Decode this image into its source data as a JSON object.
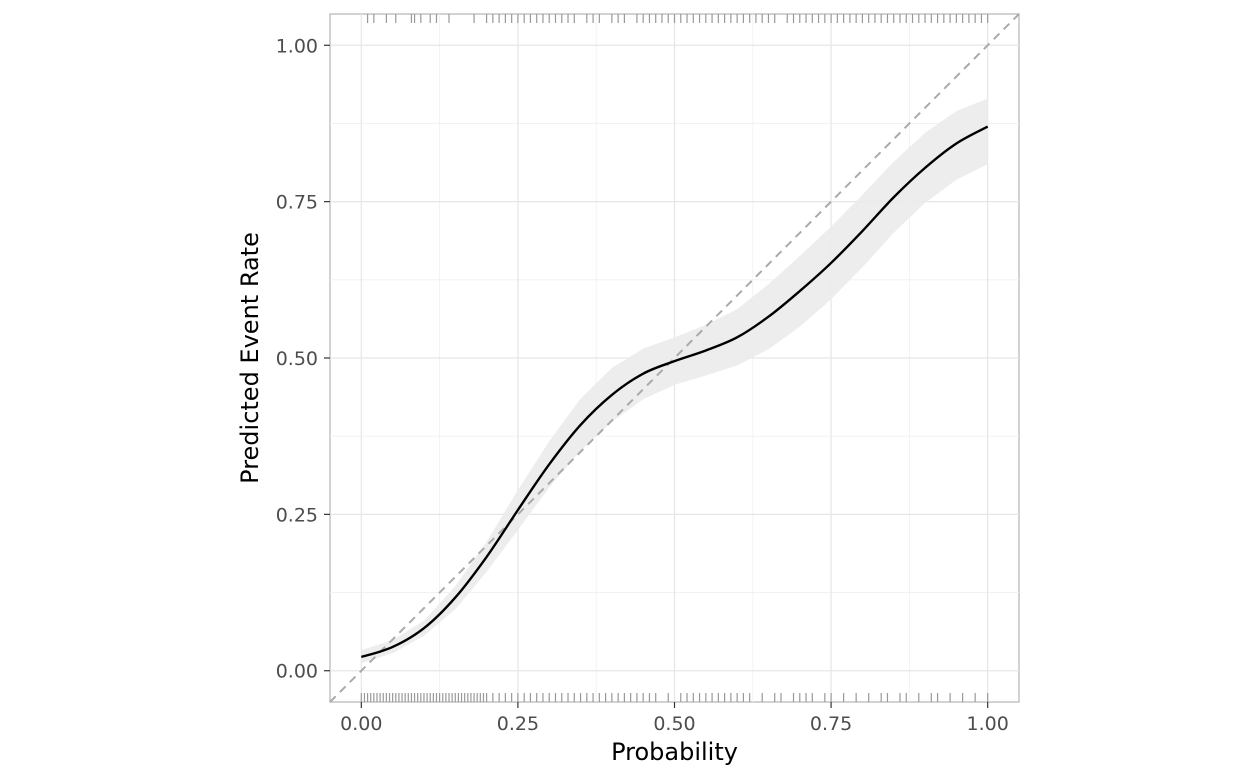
{
  "chart_data": {
    "type": "line",
    "title": "",
    "xlabel": "Probability",
    "ylabel": "Predicted Event Rate",
    "xlim": [
      -0.05,
      1.05
    ],
    "ylim": [
      -0.05,
      1.05
    ],
    "grid": true,
    "x_ticks": [
      0.0,
      0.25,
      0.5,
      0.75,
      1.0
    ],
    "x_tick_labels": [
      "0.00",
      "0.25",
      "0.50",
      "0.75",
      "1.00"
    ],
    "y_ticks": [
      0.0,
      0.25,
      0.5,
      0.75,
      1.0
    ],
    "y_tick_labels": [
      "0.00",
      "0.25",
      "0.50",
      "0.75",
      "1.00"
    ],
    "reference_line": {
      "x": [
        0,
        1.05
      ],
      "y": [
        0,
        1.05
      ],
      "style": "dashed",
      "color": "#aaaaaa"
    },
    "series": [
      {
        "x": [
          0.0,
          0.05,
          0.1,
          0.15,
          0.2,
          0.25,
          0.3,
          0.35,
          0.4,
          0.45,
          0.5,
          0.55,
          0.6,
          0.65,
          0.7,
          0.75,
          0.8,
          0.85,
          0.9,
          0.95,
          1.0
        ],
        "y": [
          0.022,
          0.038,
          0.068,
          0.117,
          0.182,
          0.257,
          0.33,
          0.393,
          0.441,
          0.475,
          0.495,
          0.512,
          0.533,
          0.566,
          0.607,
          0.652,
          0.703,
          0.757,
          0.804,
          0.843,
          0.87
        ],
        "y_lower": [
          0.012,
          0.028,
          0.056,
          0.098,
          0.158,
          0.225,
          0.293,
          0.352,
          0.398,
          0.434,
          0.457,
          0.472,
          0.488,
          0.514,
          0.55,
          0.594,
          0.645,
          0.7,
          0.748,
          0.785,
          0.81
        ],
        "y_upper": [
          0.033,
          0.049,
          0.08,
          0.135,
          0.206,
          0.289,
          0.367,
          0.435,
          0.484,
          0.515,
          0.533,
          0.553,
          0.578,
          0.618,
          0.663,
          0.71,
          0.761,
          0.814,
          0.86,
          0.895,
          0.915
        ],
        "color": "#000000",
        "band_color": "#ebebeb"
      }
    ],
    "rug_top": [
      0.01,
      0.02,
      0.04,
      0.055,
      0.08,
      0.085,
      0.095,
      0.11,
      0.12,
      0.14,
      0.18,
      0.2,
      0.21,
      0.22,
      0.23,
      0.24,
      0.25,
      0.26,
      0.27,
      0.28,
      0.29,
      0.3,
      0.31,
      0.32,
      0.33,
      0.34,
      0.36,
      0.37,
      0.38,
      0.4,
      0.41,
      0.42,
      0.44,
      0.45,
      0.46,
      0.47,
      0.48,
      0.49,
      0.5,
      0.51,
      0.52,
      0.53,
      0.54,
      0.55,
      0.56,
      0.57,
      0.58,
      0.59,
      0.6,
      0.61,
      0.62,
      0.63,
      0.64,
      0.65,
      0.66,
      0.68,
      0.69,
      0.7,
      0.71,
      0.72,
      0.73,
      0.74,
      0.75,
      0.76,
      0.77,
      0.78,
      0.79,
      0.8,
      0.81,
      0.82,
      0.83,
      0.84,
      0.85,
      0.86,
      0.87,
      0.88,
      0.89,
      0.9,
      0.91,
      0.92,
      0.93,
      0.94,
      0.95,
      0.96,
      0.97,
      0.98,
      0.99,
      1.0
    ],
    "rug_bottom": [
      0.0,
      0.005,
      0.01,
      0.015,
      0.02,
      0.025,
      0.03,
      0.035,
      0.04,
      0.045,
      0.05,
      0.055,
      0.06,
      0.065,
      0.07,
      0.075,
      0.08,
      0.085,
      0.09,
      0.095,
      0.1,
      0.105,
      0.11,
      0.115,
      0.12,
      0.125,
      0.13,
      0.135,
      0.14,
      0.145,
      0.15,
      0.155,
      0.16,
      0.165,
      0.17,
      0.175,
      0.18,
      0.185,
      0.19,
      0.195,
      0.2,
      0.21,
      0.22,
      0.23,
      0.24,
      0.25,
      0.26,
      0.27,
      0.28,
      0.29,
      0.3,
      0.31,
      0.32,
      0.33,
      0.34,
      0.35,
      0.36,
      0.37,
      0.38,
      0.39,
      0.4,
      0.41,
      0.42,
      0.43,
      0.44,
      0.45,
      0.46,
      0.47,
      0.49,
      0.51,
      0.52,
      0.53,
      0.54,
      0.55,
      0.56,
      0.57,
      0.58,
      0.59,
      0.6,
      0.61,
      0.62,
      0.64,
      0.66,
      0.67,
      0.69,
      0.7,
      0.71,
      0.72,
      0.74,
      0.75,
      0.77,
      0.79,
      0.81,
      0.83,
      0.84,
      0.86,
      0.87,
      0.89,
      0.91,
      0.92,
      0.94,
      0.96,
      0.98,
      1.0
    ]
  }
}
